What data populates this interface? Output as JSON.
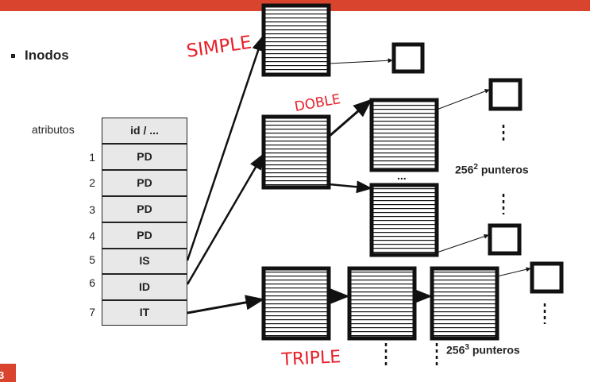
{
  "bullet": "Inodos",
  "table": {
    "header_label": "atributos",
    "header_value": "id / ...",
    "rows": [
      {
        "index": "1",
        "value": "PD"
      },
      {
        "index": "2",
        "value": "PD"
      },
      {
        "index": "3",
        "value": "PD"
      },
      {
        "index": "4",
        "value": "PD"
      },
      {
        "index": "5",
        "value": "IS"
      },
      {
        "index": "6",
        "value": "ID"
      },
      {
        "index": "7",
        "value": "IT"
      }
    ]
  },
  "annotations": {
    "simple": "SIMPLE",
    "doble": "DOBLE",
    "triple": "TRIPLE"
  },
  "labels": {
    "dots": "...",
    "double_count_base": "256",
    "double_count_exp": "2",
    "triple_count_base": "256",
    "triple_count_exp": "3",
    "pointers_word": "punteros"
  },
  "page_number": "3",
  "colors": {
    "accent": "#d9442e",
    "handwriting": "#e8202a",
    "ink": "#111111",
    "cell_fill": "#e8e8e8"
  }
}
